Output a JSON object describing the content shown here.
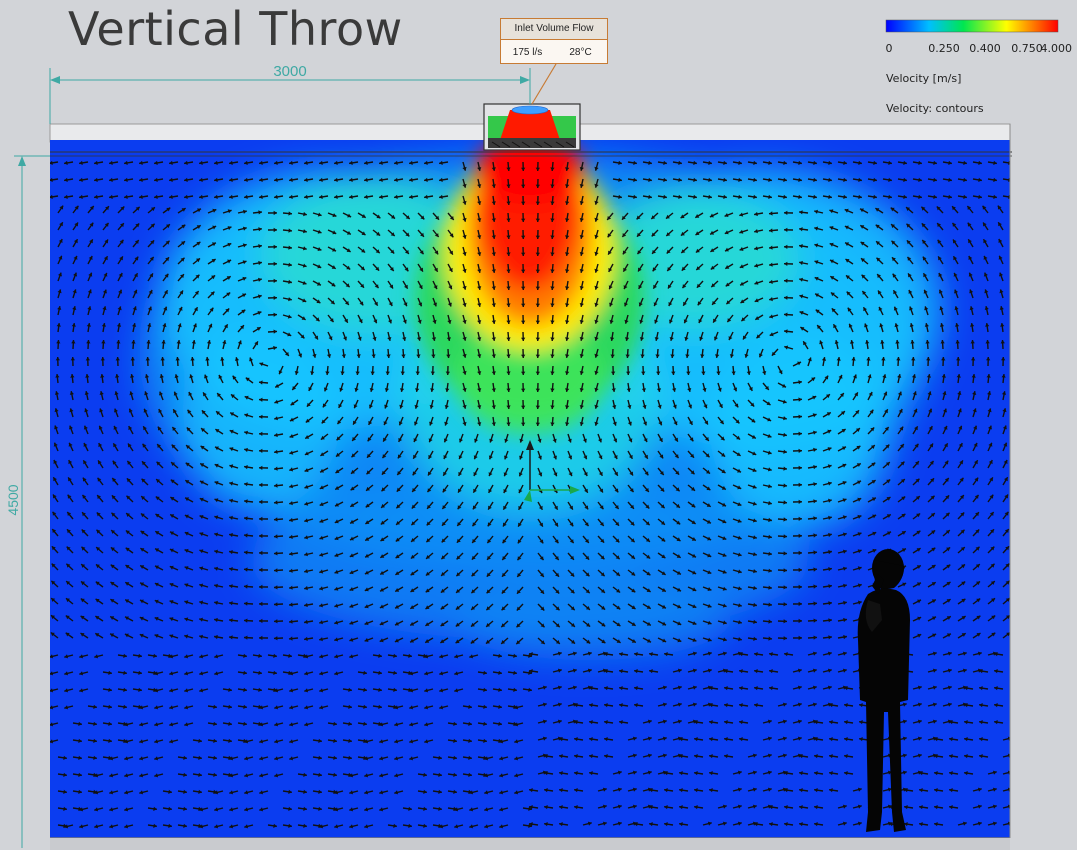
{
  "title": "Vertical Throw",
  "inlet": {
    "header": "Inlet Volume Flow",
    "flow": "175 l/s",
    "temperature": "28°C"
  },
  "legend": {
    "ticks": [
      "0",
      "0.250",
      "0.400",
      "0.750",
      "4.000"
    ],
    "quantity": "Velocity [m/s]",
    "plot_type": "Velocity: contours",
    "colors": [
      "#0000ff",
      "#00c8ff",
      "#00e650",
      "#ffff00",
      "#ff0000"
    ]
  },
  "dimensions": {
    "width": "3000",
    "height": "4500"
  },
  "colors": {
    "background": "#d2d4d8",
    "room_base": "#0b3df0",
    "dimension_line": "#3fa9a4",
    "callout_border": "#c77b34"
  }
}
